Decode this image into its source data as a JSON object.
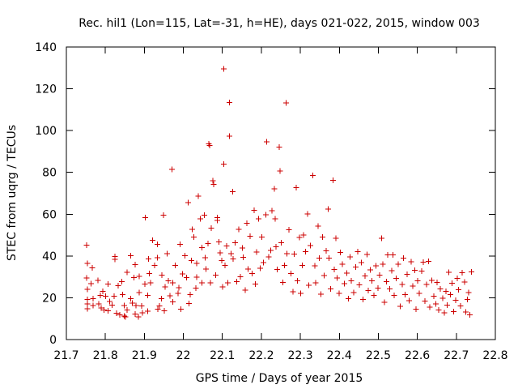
{
  "chart_data": {
    "type": "scatter",
    "title": "Rec. hil1 (Lon=115, Lat=-31, h=HE), days 021-022, 2015, window 003",
    "xlabel": "GPS time / Days of year 2015",
    "ylabel": "STEC from uqrg / TECUs",
    "xlim": [
      21.7,
      22.8
    ],
    "ylim": [
      0,
      140
    ],
    "xticks": [
      "21.7",
      "21.8",
      "21.9",
      "22",
      "22.1",
      "22.2",
      "22.3",
      "22.4",
      "22.5",
      "22.6",
      "22.7",
      "22.8"
    ],
    "yticks": [
      "0",
      "20",
      "40",
      "60",
      "80",
      "100",
      "120",
      "140"
    ],
    "grid": false,
    "legend": "none",
    "marker": "+",
    "series": [
      {
        "color": "#cc0000",
        "points": [
          [
            21.752,
            45.2
          ],
          [
            21.754,
            36.5
          ],
          [
            21.752,
            29.4
          ],
          [
            21.754,
            24.1
          ],
          [
            21.754,
            19.1
          ],
          [
            21.754,
            17.1
          ],
          [
            21.754,
            14.8
          ],
          [
            21.763,
            26.7
          ],
          [
            21.766,
            34.3
          ],
          [
            21.768,
            19.5
          ],
          [
            21.768,
            16.2
          ],
          [
            21.783,
            17.1
          ],
          [
            21.787,
            21.1
          ],
          [
            21.789,
            15.1
          ],
          [
            21.781,
            28.3
          ],
          [
            21.793,
            23.1
          ],
          [
            21.797,
            14.1
          ],
          [
            21.801,
            20.8
          ],
          [
            21.807,
            13.8
          ],
          [
            21.811,
            18.2
          ],
          [
            21.807,
            26.5
          ],
          [
            21.817,
            16.5
          ],
          [
            21.822,
            20.7
          ],
          [
            21.825,
            39.7
          ],
          [
            21.825,
            38.4
          ],
          [
            21.829,
            12.7
          ],
          [
            21.833,
            25.8
          ],
          [
            21.837,
            11.9
          ],
          [
            21.842,
            27.8
          ],
          [
            21.844,
            21.6
          ],
          [
            21.848,
            11.3
          ],
          [
            21.848,
            16.3
          ],
          [
            21.852,
            10.9
          ],
          [
            21.856,
            32.2
          ],
          [
            21.856,
            14.2
          ],
          [
            21.865,
            19.5
          ],
          [
            21.865,
            40.1
          ],
          [
            21.869,
            17.4
          ],
          [
            21.873,
            29.7
          ],
          [
            21.876,
            35.8
          ],
          [
            21.876,
            12.2
          ],
          [
            21.879,
            16.2
          ],
          [
            21.885,
            10.9
          ],
          [
            21.887,
            30.2
          ],
          [
            21.887,
            22.4
          ],
          [
            21.893,
            16.1
          ],
          [
            21.895,
            12.8
          ],
          [
            21.901,
            26.5
          ],
          [
            21.902,
            58.3
          ],
          [
            21.909,
            21.2
          ],
          [
            21.909,
            13.6
          ],
          [
            21.911,
            38.5
          ],
          [
            21.913,
            31.6
          ],
          [
            21.916,
            27.1
          ],
          [
            21.921,
            47.5
          ],
          [
            21.926,
            35.5
          ],
          [
            21.933,
            45.6
          ],
          [
            21.933,
            39.2
          ],
          [
            21.935,
            14.6
          ],
          [
            21.939,
            16.1
          ],
          [
            21.944,
            19.5
          ],
          [
            21.945,
            30.8
          ],
          [
            21.949,
            59.6
          ],
          [
            21.951,
            13.7
          ],
          [
            21.953,
            25.3
          ],
          [
            21.958,
            41.1
          ],
          [
            21.962,
            28.2
          ],
          [
            21.966,
            20.9
          ],
          [
            21.971,
            81.5
          ],
          [
            21.973,
            18.1
          ],
          [
            21.973,
            27.1
          ],
          [
            21.979,
            35.5
          ],
          [
            21.986,
            22.2
          ],
          [
            21.988,
            24.8
          ],
          [
            21.992,
            45.5
          ],
          [
            21.994,
            14.5
          ],
          [
            21.998,
            31.5
          ],
          [
            22.004,
            40.1
          ],
          [
            22.008,
            29.6
          ],
          [
            22.012,
            65.6
          ],
          [
            22.014,
            17.2
          ],
          [
            22.018,
            21.5
          ],
          [
            22.021,
            37.8
          ],
          [
            22.023,
            52.7
          ],
          [
            22.027,
            49.0
          ],
          [
            22.032,
            24.6
          ],
          [
            22.034,
            29.9
          ],
          [
            22.034,
            36.5
          ],
          [
            22.038,
            68.6
          ],
          [
            22.043,
            57.8
          ],
          [
            22.048,
            27.2
          ],
          [
            22.048,
            44.1
          ],
          [
            22.054,
            59.5
          ],
          [
            22.056,
            39.1
          ],
          [
            22.058,
            33.8
          ],
          [
            22.063,
            45.9
          ],
          [
            22.065,
            93.6
          ],
          [
            22.067,
            92.8
          ],
          [
            22.069,
            27.1
          ],
          [
            22.071,
            53.4
          ],
          [
            22.076,
            76.1
          ],
          [
            22.078,
            74.2
          ],
          [
            22.083,
            30.8
          ],
          [
            22.087,
            58.4
          ],
          [
            22.087,
            57.1
          ],
          [
            22.091,
            46.8
          ],
          [
            22.094,
            41.5
          ],
          [
            22.098,
            37.8
          ],
          [
            22.101,
            25.3
          ],
          [
            22.104,
            129.5
          ],
          [
            22.104,
            84.0
          ],
          [
            22.107,
            35.4
          ],
          [
            22.111,
            44.8
          ],
          [
            22.114,
            27.1
          ],
          [
            22.118,
            113.5
          ],
          [
            22.118,
            97.3
          ],
          [
            22.122,
            41.2
          ],
          [
            22.126,
            70.8
          ],
          [
            22.128,
            38.6
          ],
          [
            22.133,
            46.3
          ],
          [
            22.137,
            27.8
          ],
          [
            22.142,
            52.8
          ],
          [
            22.146,
            30.1
          ],
          [
            22.151,
            43.9
          ],
          [
            22.154,
            39.3
          ],
          [
            22.159,
            23.7
          ],
          [
            22.163,
            55.7
          ],
          [
            22.166,
            33.8
          ],
          [
            22.171,
            49.5
          ],
          [
            22.176,
            31.7
          ],
          [
            22.181,
            61.8
          ],
          [
            22.185,
            26.5
          ],
          [
            22.188,
            41.8
          ],
          [
            22.193,
            57.8
          ],
          [
            22.197,
            34.2
          ],
          [
            22.201,
            49.1
          ],
          [
            22.205,
            36.9
          ],
          [
            22.212,
            59.8
          ],
          [
            22.214,
            94.6
          ],
          [
            22.219,
            39.6
          ],
          [
            22.224,
            42.7
          ],
          [
            22.227,
            61.6
          ],
          [
            22.233,
            72.1
          ],
          [
            22.235,
            57.8
          ],
          [
            22.238,
            44.4
          ],
          [
            22.241,
            33.6
          ],
          [
            22.246,
            92.1
          ],
          [
            22.248,
            80.6
          ],
          [
            22.251,
            46.3
          ],
          [
            22.255,
            27.3
          ],
          [
            22.259,
            35.5
          ],
          [
            22.263,
            113.3
          ],
          [
            22.266,
            41.1
          ],
          [
            22.271,
            52.5
          ],
          [
            22.276,
            31.7
          ],
          [
            22.281,
            22.8
          ],
          [
            22.284,
            40.9
          ],
          [
            22.289,
            72.7
          ],
          [
            22.293,
            28.2
          ],
          [
            22.298,
            48.8
          ],
          [
            22.301,
            22.2
          ],
          [
            22.305,
            35.5
          ],
          [
            22.308,
            50.1
          ],
          [
            22.313,
            42.1
          ],
          [
            22.318,
            60.2
          ],
          [
            22.322,
            25.9
          ],
          [
            22.326,
            45.0
          ],
          [
            22.332,
            78.5
          ],
          [
            22.337,
            35.2
          ],
          [
            22.339,
            27.1
          ],
          [
            22.345,
            54.3
          ],
          [
            22.349,
            39.0
          ],
          [
            22.353,
            21.7
          ],
          [
            22.357,
            49.1
          ],
          [
            22.361,
            30.7
          ],
          [
            22.366,
            42.5
          ],
          [
            22.371,
            62.5
          ],
          [
            22.374,
            38.9
          ],
          [
            22.378,
            24.3
          ],
          [
            22.384,
            76.2
          ],
          [
            22.387,
            33.6
          ],
          [
            22.391,
            48.5
          ],
          [
            22.394,
            29.5
          ],
          [
            22.399,
            22.1
          ],
          [
            22.403,
            41.7
          ],
          [
            22.408,
            36.0
          ],
          [
            22.413,
            26.7
          ],
          [
            22.419,
            31.8
          ],
          [
            22.423,
            19.5
          ],
          [
            22.427,
            39.5
          ],
          [
            22.431,
            28.2
          ],
          [
            22.437,
            22.4
          ],
          [
            22.442,
            34.7
          ],
          [
            22.447,
            42.1
          ],
          [
            22.451,
            26.1
          ],
          [
            22.456,
            36.9
          ],
          [
            22.461,
            19.2
          ],
          [
            22.466,
            30.4
          ],
          [
            22.471,
            40.8
          ],
          [
            22.474,
            23.5
          ],
          [
            22.479,
            33.4
          ],
          [
            22.484,
            28.1
          ],
          [
            22.489,
            21.1
          ],
          [
            22.494,
            35.3
          ],
          [
            22.499,
            24.7
          ],
          [
            22.503,
            30.8
          ],
          [
            22.508,
            48.4
          ],
          [
            22.512,
            36.0
          ],
          [
            22.516,
            17.9
          ],
          [
            22.521,
            27.7
          ],
          [
            22.524,
            40.6
          ],
          [
            22.529,
            24.3
          ],
          [
            22.534,
            32.9
          ],
          [
            22.537,
            40.6
          ],
          [
            22.541,
            21.1
          ],
          [
            22.546,
            29.2
          ],
          [
            22.551,
            36.1
          ],
          [
            22.556,
            15.9
          ],
          [
            22.561,
            26.3
          ],
          [
            22.564,
            38.9
          ],
          [
            22.569,
            21.6
          ],
          [
            22.574,
            31.2
          ],
          [
            22.579,
            18.6
          ],
          [
            22.584,
            37.3
          ],
          [
            22.588,
            25.5
          ],
          [
            22.593,
            33.1
          ],
          [
            22.597,
            14.6
          ],
          [
            22.601,
            28.1
          ],
          [
            22.605,
            22.1
          ],
          [
            22.611,
            32.7
          ],
          [
            22.615,
            37.0
          ],
          [
            22.619,
            18.4
          ],
          [
            22.624,
            26.3
          ],
          [
            22.629,
            37.5
          ],
          [
            22.632,
            15.5
          ],
          [
            22.637,
            28.4
          ],
          [
            22.642,
            20.8
          ],
          [
            22.647,
            17.1
          ],
          [
            22.651,
            27.4
          ],
          [
            22.655,
            14.2
          ],
          [
            22.659,
            24.2
          ],
          [
            22.665,
            19.7
          ],
          [
            22.669,
            12.8
          ],
          [
            22.673,
            23.1
          ],
          [
            22.677,
            16.4
          ],
          [
            22.681,
            32.2
          ],
          [
            22.685,
            21.5
          ],
          [
            22.689,
            26.9
          ],
          [
            22.693,
            13.4
          ],
          [
            22.698,
            18.8
          ],
          [
            22.702,
            29.3
          ],
          [
            22.706,
            23.9
          ],
          [
            22.711,
            16.1
          ],
          [
            22.715,
            32.0
          ],
          [
            22.721,
            27.5
          ],
          [
            22.724,
            13.2
          ],
          [
            22.728,
            19.2
          ],
          [
            22.731,
            22.5
          ],
          [
            22.735,
            11.9
          ],
          [
            22.739,
            32.4
          ]
        ]
      }
    ]
  }
}
